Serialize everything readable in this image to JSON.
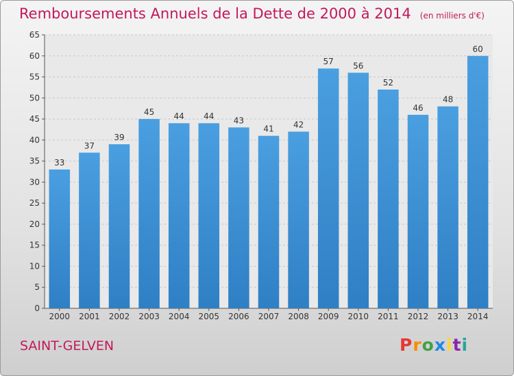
{
  "title": "Remboursements Annuels de la Dette de 2000 à 2014",
  "subtitle": "(en milliers d'€)",
  "commune": "SAINT-GELVEN",
  "logo": {
    "letters": [
      "P",
      "r",
      "o",
      "x",
      "i",
      "t",
      "i"
    ],
    "colors": [
      "#e53935",
      "#fb8c00",
      "#43a047",
      "#1e88e5",
      "#fdd835",
      "#8e24aa",
      "#26a69a"
    ]
  },
  "colors": {
    "bar": "#4a9fe0",
    "bar_dark": "#2f7fc4",
    "title": "#c2185b",
    "grid": "#c8c8c8"
  },
  "chart_data": {
    "type": "bar",
    "categories": [
      "2000",
      "2001",
      "2002",
      "2003",
      "2004",
      "2005",
      "2006",
      "2007",
      "2008",
      "2009",
      "2010",
      "2011",
      "2012",
      "2013",
      "2014"
    ],
    "values": [
      33,
      37,
      39,
      45,
      44,
      44,
      43,
      41,
      42,
      57,
      56,
      52,
      46,
      48,
      60
    ],
    "data_labels": [
      "33",
      "37",
      "39",
      "45",
      "44",
      "44",
      "43",
      "41",
      "42",
      "57",
      "56",
      "52",
      "46",
      "48",
      "60"
    ],
    "title": "Remboursements Annuels de la Dette de 2000 à 2014",
    "xlabel": "",
    "ylabel": "",
    "ylim": [
      0,
      65
    ],
    "yticks": [
      0,
      5,
      10,
      15,
      20,
      25,
      30,
      35,
      40,
      45,
      50,
      55,
      60,
      65
    ],
    "ytick_labels": [
      "0",
      "5",
      "10",
      "15",
      "20",
      "25",
      "30",
      "35",
      "40",
      "45",
      "50",
      "55",
      "60",
      "65"
    ],
    "grid": true
  }
}
